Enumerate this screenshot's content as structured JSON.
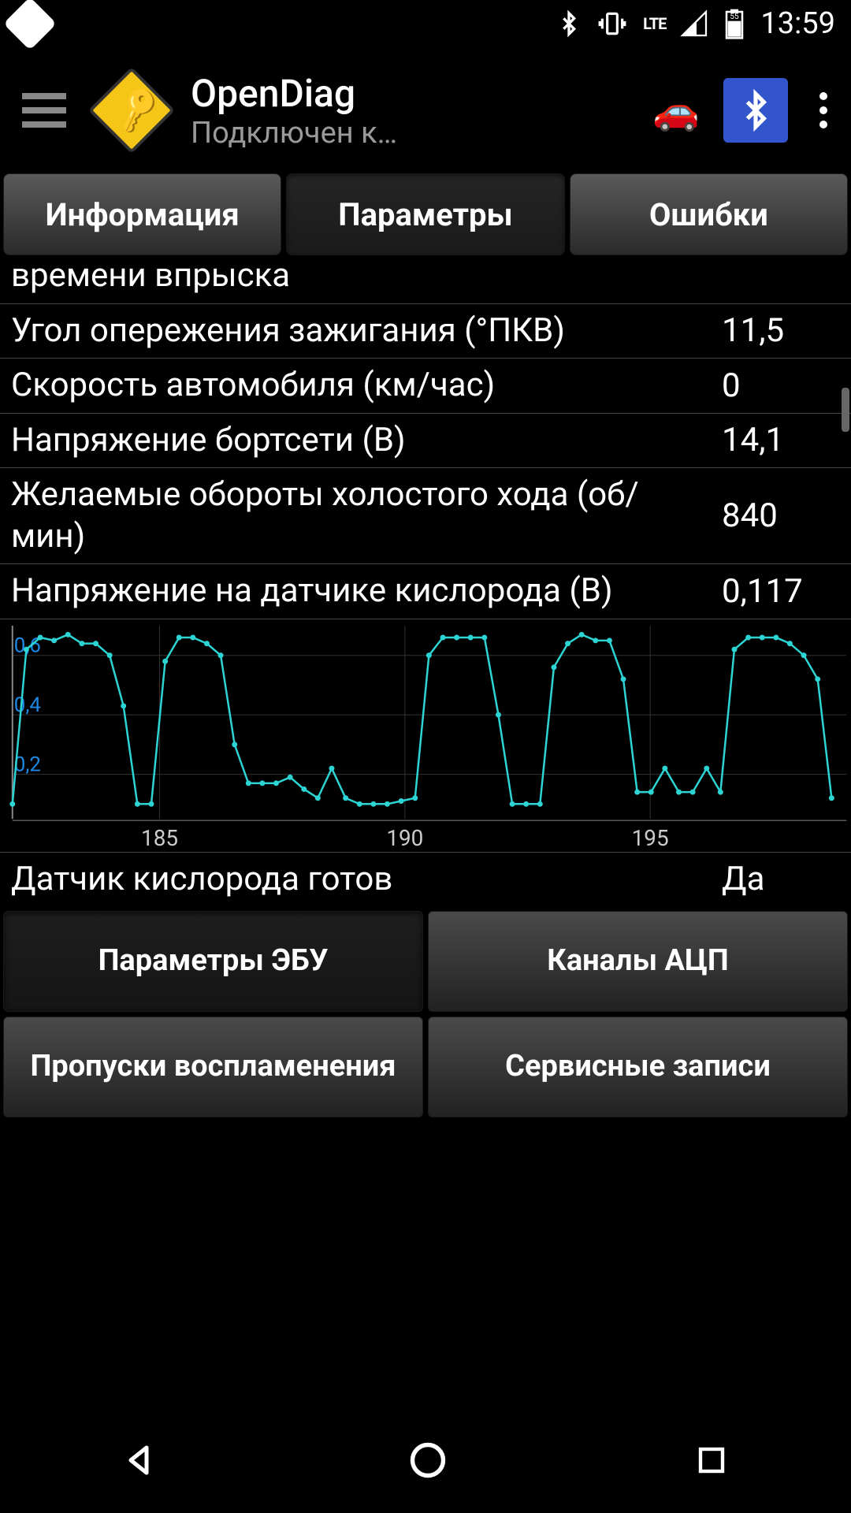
{
  "status": {
    "time": "13:59",
    "lte_label": "LTE",
    "battery_level": "55"
  },
  "header": {
    "title": "OpenDiag",
    "subtitle": "Подключен к…"
  },
  "tabs": {
    "info": "Информация",
    "params": "Параметры",
    "errors": "Ошибки",
    "active_index": 1
  },
  "params": [
    {
      "label": "времени впрыска",
      "value": ""
    },
    {
      "label": "Угол опережения зажигания (°ПКВ)",
      "value": "11,5"
    },
    {
      "label": "Скорость автомобиля (км/час)",
      "value": "0"
    },
    {
      "label": "Напряжение бортсети (В)",
      "value": "14,1"
    },
    {
      "label": "Желаемые обороты холостого хода (об/мин)",
      "value": "840"
    },
    {
      "label": "Напряжение на датчике кислорода (В)",
      "value": "0,117"
    }
  ],
  "param_after_chart": {
    "label": "Датчик кислорода готов",
    "value": "Да"
  },
  "chart": {
    "type": "line",
    "line_color": "#2dd4d4",
    "marker_color": "#2dd4d4",
    "grid_color": "#333333",
    "axis_color": "#888888",
    "y_label_color": "#1e88e5",
    "background_color": "#000000",
    "ylim": [
      0.05,
      0.7
    ],
    "xlim": [
      182,
      199
    ],
    "yticks": [
      0.2,
      0.4,
      0.6
    ],
    "xticks": [
      185,
      190,
      195
    ],
    "ytick_labels": [
      "0,2",
      "0,4",
      "0,6"
    ],
    "xtick_labels": [
      "185",
      "190",
      "195"
    ],
    "values": [
      0.1,
      0.62,
      0.66,
      0.65,
      0.67,
      0.64,
      0.64,
      0.6,
      0.43,
      0.1,
      0.1,
      0.58,
      0.66,
      0.66,
      0.64,
      0.6,
      0.3,
      0.17,
      0.17,
      0.17,
      0.19,
      0.15,
      0.12,
      0.22,
      0.12,
      0.1,
      0.1,
      0.1,
      0.11,
      0.12,
      0.6,
      0.66,
      0.66,
      0.66,
      0.66,
      0.4,
      0.1,
      0.1,
      0.1,
      0.56,
      0.64,
      0.67,
      0.65,
      0.65,
      0.52,
      0.14,
      0.14,
      0.22,
      0.14,
      0.14,
      0.22,
      0.14,
      0.62,
      0.66,
      0.66,
      0.66,
      0.64,
      0.6,
      0.52,
      0.12
    ],
    "x_start": 182.0,
    "x_step": 0.283,
    "title_fontsize": 28,
    "label_fontsize": 26,
    "marker_size": 3.5,
    "line_width": 2.5
  },
  "bottom_buttons": {
    "ecu_params": "Параметры ЭБУ",
    "adc_channels": "Каналы АЦП",
    "misfire": "Пропуски воспламенения",
    "service": "Сервисные записи",
    "active_index": 0
  }
}
